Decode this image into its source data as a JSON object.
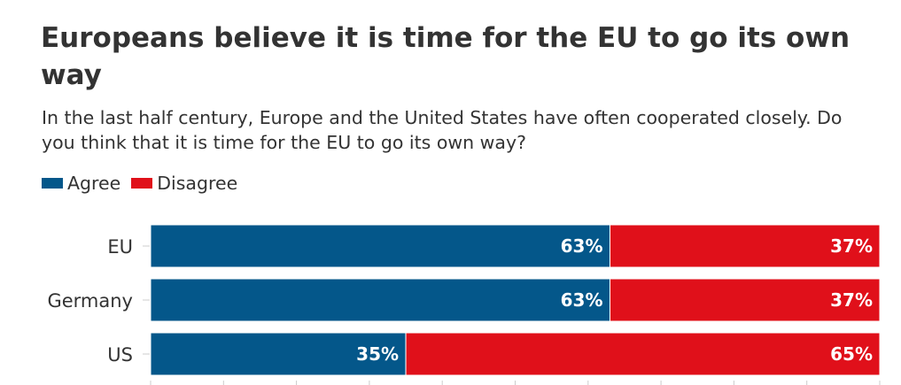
{
  "title": "Europeans believe it is time for the EU to go its own way",
  "subtitle": "In the last half century, Europe and the United States have often cooperated closely. Do you think that it is time for the EU to go its own way?",
  "legend": {
    "items": [
      {
        "label": "Agree",
        "color": "#04578a"
      },
      {
        "label": "Disagree",
        "color": "#e0101a"
      }
    ]
  },
  "chart_data": {
    "type": "bar",
    "orientation": "horizontal",
    "stacked": true,
    "categories": [
      "EU",
      "Germany",
      "US"
    ],
    "series": [
      {
        "name": "Agree",
        "color": "#04578a",
        "values": [
          63,
          63,
          35
        ],
        "labels": [
          "63%",
          "63%",
          "35%"
        ]
      },
      {
        "name": "Disagree",
        "color": "#e0101a",
        "values": [
          37,
          37,
          65
        ],
        "labels": [
          "37%",
          "37%",
          "65%"
        ]
      }
    ],
    "xlim": [
      0,
      100
    ],
    "legend_position": "top-left"
  }
}
